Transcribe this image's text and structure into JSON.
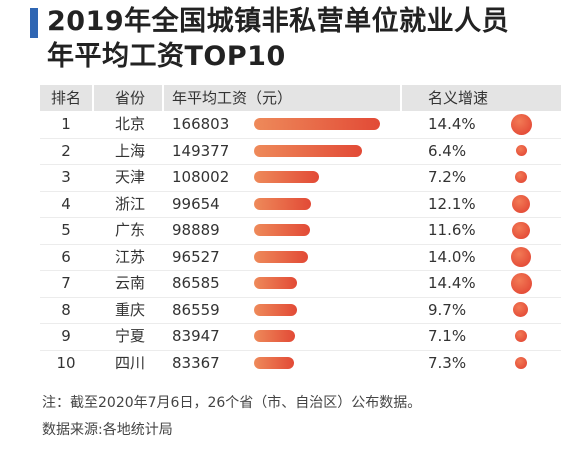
{
  "title_line1": "2019年全国城镇非私营单位就业人员",
  "title_line2": "年平均工资TOP10",
  "headers": {
    "rank": "排名",
    "province": "省份",
    "wage": "年平均工资（元）",
    "growth": "名义增速"
  },
  "accent_color": "#2f66b3",
  "bar_color": "#e24a36",
  "chart_data": {
    "type": "table",
    "title": "2019年全国城镇非私营单位就业人员年平均工资TOP10",
    "columns": [
      "排名",
      "省份",
      "年平均工资（元）",
      "名义增速"
    ],
    "rows": [
      {
        "rank": "1",
        "province": "北京",
        "wage": 166803,
        "wage_label": "166803",
        "growth": 14.4,
        "growth_label": "14.4%"
      },
      {
        "rank": "2",
        "province": "上海",
        "wage": 149377,
        "wage_label": "149377",
        "growth": 6.4,
        "growth_label": "6.4%"
      },
      {
        "rank": "3",
        "province": "天津",
        "wage": 108002,
        "wage_label": "108002",
        "growth": 7.2,
        "growth_label": "7.2%"
      },
      {
        "rank": "4",
        "province": "浙江",
        "wage": 99654,
        "wage_label": "99654",
        "growth": 12.1,
        "growth_label": "12.1%"
      },
      {
        "rank": "5",
        "province": "广东",
        "wage": 98889,
        "wage_label": "98889",
        "growth": 11.6,
        "growth_label": "11.6%"
      },
      {
        "rank": "6",
        "province": "江苏",
        "wage": 96527,
        "wage_label": "96527",
        "growth": 14.0,
        "growth_label": "14.0%"
      },
      {
        "rank": "7",
        "province": "云南",
        "wage": 86585,
        "wage_label": "86585",
        "growth": 14.4,
        "growth_label": "14.4%"
      },
      {
        "rank": "8",
        "province": "重庆",
        "wage": 86559,
        "wage_label": "86559",
        "growth": 9.7,
        "growth_label": "9.7%"
      },
      {
        "rank": "9",
        "province": "宁夏",
        "wage": 83947,
        "wage_label": "83947",
        "growth": 7.1,
        "growth_label": "7.1%"
      },
      {
        "rank": "10",
        "province": "四川",
        "wage": 83367,
        "wage_label": "83367",
        "growth": 7.3,
        "growth_label": "7.3%"
      }
    ]
  },
  "note_line1": "注：截至2020年7月6日，26个省（市、自治区）公布数据。",
  "note_line2": "数据来源:各地统计局"
}
